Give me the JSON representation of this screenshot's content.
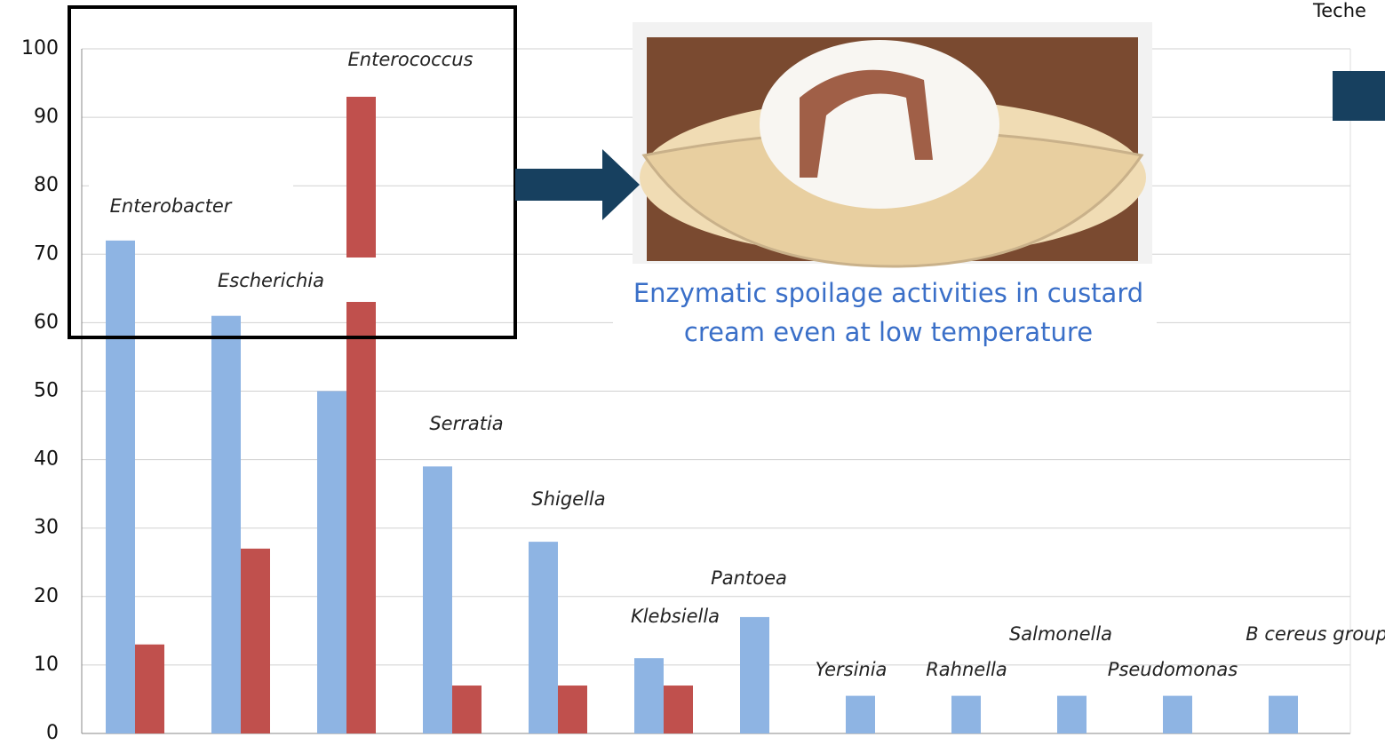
{
  "chart_data": {
    "type": "bar",
    "categories": [
      "Enterobacter",
      "Escherichia",
      "Enterococcus",
      "Serratia",
      "Shigella",
      "Klebsiella",
      "Pantoea",
      "Yersinia",
      "Rahnella",
      "Salmonella",
      "Pseudomonas",
      "B cereus group"
    ],
    "series": [
      {
        "color": "#8eb4e3",
        "values": [
          72,
          61,
          50,
          39,
          28,
          11,
          17,
          5.5,
          5.5,
          5.5,
          5.5,
          5.5
        ]
      },
      {
        "color": "#c0504d",
        "values": [
          13,
          27,
          93,
          7,
          7,
          7,
          null,
          null,
          null,
          null,
          null,
          null
        ]
      }
    ],
    "ylim": [
      0,
      100
    ],
    "yticks": [
      0,
      10,
      20,
      30,
      40,
      50,
      60,
      70,
      80,
      90,
      100
    ],
    "grid": true
  },
  "caption": "Enzymatic spoilage activities in custard cream even at low temperature",
  "corner_text": "Teche"
}
